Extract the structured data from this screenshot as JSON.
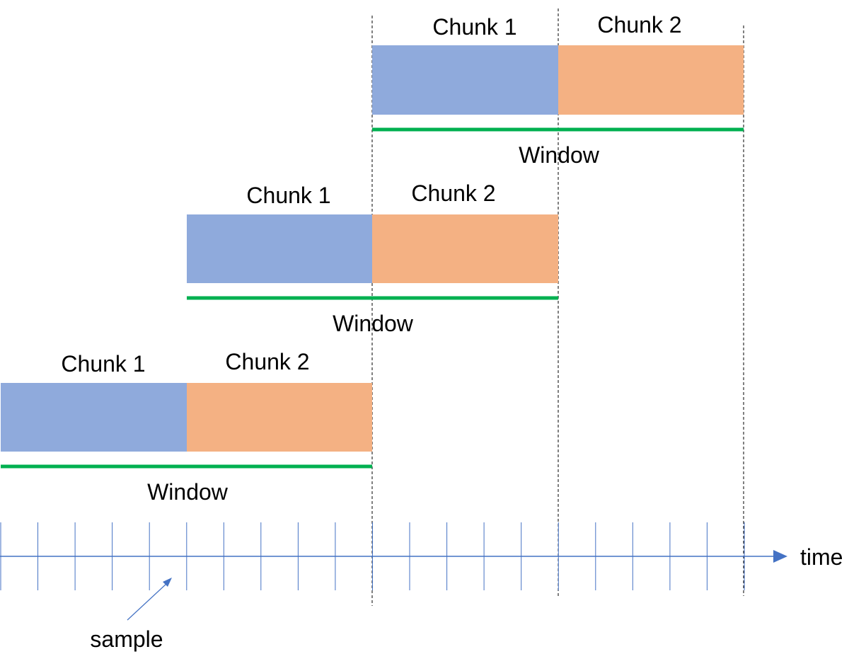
{
  "rows": [
    {
      "chunk1_label": "Chunk 1",
      "chunk2_label": "Chunk 2",
      "window_label": "Window"
    },
    {
      "chunk1_label": "Chunk 1",
      "chunk2_label": "Chunk 2",
      "window_label": "Window"
    },
    {
      "chunk1_label": "Chunk 1",
      "chunk2_label": "Chunk 2",
      "window_label": "Window"
    }
  ],
  "axis": {
    "label": "time"
  },
  "annotation": {
    "label": "sample"
  },
  "colors": {
    "chunk1": "#8FAADC",
    "chunk2": "#F4B183",
    "window": "#00B050",
    "axis": "#4472C4",
    "guide": "#000000"
  }
}
